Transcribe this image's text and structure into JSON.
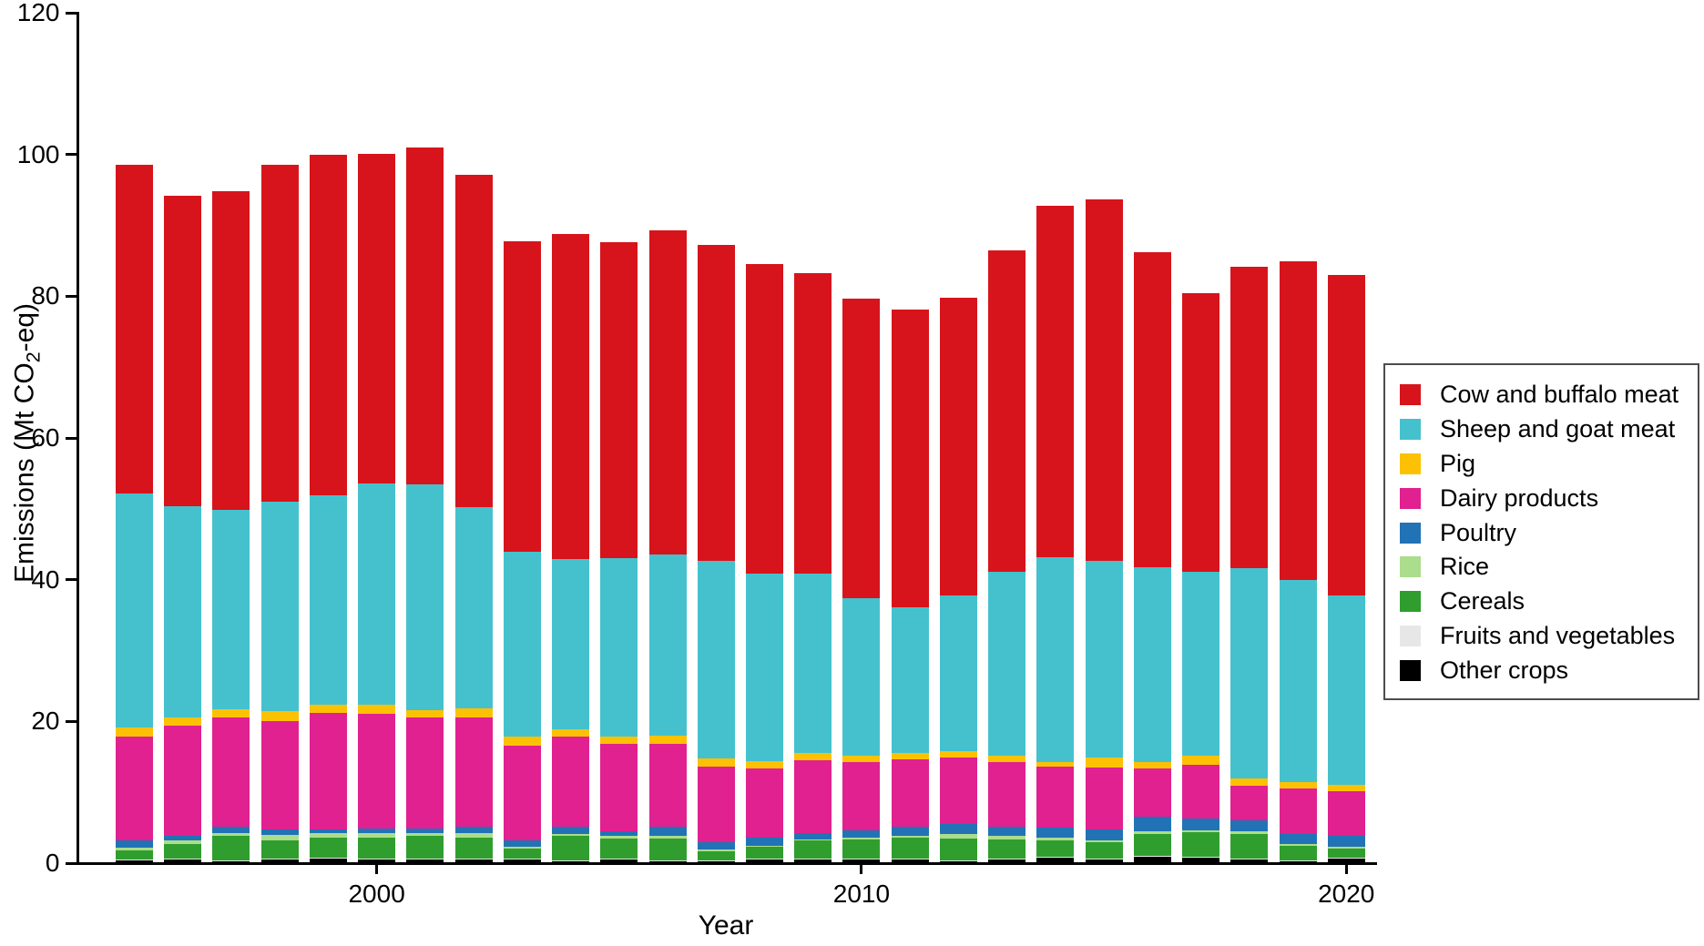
{
  "figure": {
    "y_axis_title_pre": "Emissions (Mt CO",
    "y_axis_title_sub": "2",
    "y_axis_title_post": "-eq)",
    "x_axis_title": "Year"
  },
  "chart_data": {
    "type": "bar",
    "stacked": true,
    "title": "",
    "xlabel": "Year",
    "ylabel": "Emissions (Mt CO2-eq)",
    "ylim": [
      0,
      120
    ],
    "yticks": [
      0,
      20,
      40,
      60,
      80,
      100,
      120
    ],
    "xticks": [
      2000,
      2010,
      2020
    ],
    "grid": false,
    "legend_position": "right outside, vertically centered",
    "legend_order_top_to_bottom": [
      "Cow and buffalo meat",
      "Sheep and goat meat",
      "Pig",
      "Dairy products",
      "Poultry",
      "Rice",
      "Cereals",
      "Fruits and vegetables",
      "Other crops"
    ],
    "categories": [
      1995,
      1996,
      1997,
      1998,
      1999,
      2000,
      2001,
      2002,
      2003,
      2004,
      2005,
      2006,
      2007,
      2008,
      2009,
      2010,
      2011,
      2012,
      2013,
      2014,
      2015,
      2016,
      2017,
      2018,
      2019,
      2020
    ],
    "series_bottom_to_top": [
      {
        "name": "Other crops",
        "color": "#000000",
        "values": [
          0.4,
          0.5,
          0.3,
          0.6,
          0.7,
          0.6,
          0.5,
          0.6,
          0.5,
          0.3,
          0.6,
          0.3,
          0.3,
          0.5,
          0.6,
          0.5,
          0.6,
          0.3,
          0.6,
          0.8,
          0.6,
          0.9,
          0.8,
          0.6,
          0.3,
          0.7
        ]
      },
      {
        "name": "Fruits and vegetables",
        "color": "#e7e7e7",
        "values": [
          0.1,
          0.1,
          0.1,
          0.1,
          0.1,
          0.1,
          0.1,
          0.1,
          0.1,
          0.1,
          0.1,
          0.1,
          0.1,
          0.1,
          0.1,
          0.1,
          0.1,
          0.1,
          0.1,
          0.1,
          0.1,
          0.1,
          0.1,
          0.1,
          0.1,
          0.1
        ]
      },
      {
        "name": "Cereals",
        "color": "#2f9e2e",
        "values": [
          1.3,
          2.1,
          3.4,
          2.5,
          2.8,
          2.9,
          3.2,
          2.9,
          1.5,
          3.4,
          2.8,
          3.1,
          1.3,
          1.7,
          2.5,
          2.7,
          2.9,
          3.1,
          2.6,
          2.3,
          2.2,
          3.1,
          3.5,
          3.4,
          2.0,
          1.3
        ]
      },
      {
        "name": "Rice",
        "color": "#abdd8c",
        "values": [
          0.4,
          0.5,
          0.5,
          0.8,
          0.6,
          0.6,
          0.5,
          0.6,
          0.2,
          0.3,
          0.3,
          0.4,
          0.2,
          0.2,
          0.2,
          0.3,
          0.3,
          0.6,
          0.6,
          0.4,
          0.3,
          0.4,
          0.2,
          0.4,
          0.3,
          0.2
        ]
      },
      {
        "name": "Poultry",
        "color": "#2173b5",
        "values": [
          1.0,
          0.7,
          0.8,
          0.7,
          0.6,
          0.7,
          0.6,
          0.9,
          0.9,
          1.0,
          0.7,
          1.2,
          1.1,
          1.1,
          0.9,
          1.0,
          1.2,
          1.4,
          1.3,
          1.4,
          1.5,
          2.0,
          1.7,
          1.6,
          1.4,
          1.5
        ]
      },
      {
        "name": "Dairy products",
        "color": "#e0218f",
        "values": [
          14.7,
          15.5,
          15.5,
          15.4,
          16.4,
          16.2,
          15.6,
          15.4,
          13.4,
          12.7,
          12.3,
          11.7,
          10.6,
          9.8,
          10.2,
          9.6,
          9.6,
          9.4,
          9.0,
          8.6,
          8.8,
          6.8,
          7.6,
          4.8,
          6.4,
          6.3
        ]
      },
      {
        "name": "Pig",
        "color": "#fdc103",
        "values": [
          1.3,
          1.1,
          1.1,
          1.4,
          1.1,
          1.2,
          1.1,
          1.4,
          1.2,
          1.1,
          1.1,
          1.2,
          1.2,
          1.0,
          1.0,
          1.0,
          0.9,
          0.9,
          1.0,
          0.6,
          1.4,
          1.0,
          1.2,
          1.0,
          0.9,
          1.0
        ]
      },
      {
        "name": "Sheep and goat meat",
        "color": "#45c1ce",
        "values": [
          33.0,
          29.8,
          28.2,
          29.5,
          29.6,
          31.3,
          31.8,
          28.3,
          26.2,
          24.0,
          25.2,
          25.6,
          27.8,
          26.4,
          25.4,
          22.2,
          20.5,
          22.0,
          25.9,
          29.0,
          27.7,
          27.5,
          26.0,
          29.7,
          28.6,
          26.7
        ]
      },
      {
        "name": "Cow and buffalo meat",
        "color": "#d7141b",
        "values": [
          46.4,
          43.9,
          44.9,
          47.6,
          48.1,
          46.5,
          47.6,
          46.9,
          43.8,
          45.9,
          44.5,
          45.7,
          44.6,
          43.7,
          42.4,
          42.2,
          42.0,
          42.0,
          45.4,
          49.6,
          51.1,
          44.4,
          39.3,
          42.6,
          44.9,
          45.2
        ]
      }
    ],
    "totals_approx": [
      98.6,
      94.2,
      94.8,
      98.7,
      100.0,
      100.1,
      101.0,
      97.1,
      87.9,
      88.8,
      87.6,
      89.3,
      87.2,
      84.5,
      83.2,
      79.5,
      78.1,
      79.8,
      86.4,
      92.9,
      93.5,
      86.2,
      80.4,
      84.2,
      84.8,
      83.0
    ]
  }
}
